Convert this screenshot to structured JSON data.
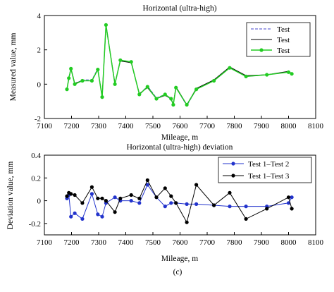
{
  "caption": "(c)",
  "chart_data": [
    {
      "type": "line",
      "title": "Horizontal (ultra-high)",
      "xlabel": "Mileage, m",
      "ylabel": "Measured value, mm",
      "xlim": [
        7100,
        8100
      ],
      "ylim": [
        -2,
        4
      ],
      "xticks": [
        7100,
        7200,
        7300,
        7400,
        7500,
        7600,
        7700,
        7800,
        7900,
        8000,
        8100
      ],
      "yticks": [
        -2,
        0,
        2,
        4
      ],
      "grid": false,
      "legend_position": "top-right",
      "x": [
        7183,
        7190,
        7198,
        7212,
        7240,
        7275,
        7297,
        7313,
        7327,
        7360,
        7380,
        7420,
        7450,
        7480,
        7513,
        7545,
        7567,
        7575,
        7585,
        7625,
        7660,
        7725,
        7783,
        7843,
        7920,
        8000,
        8012
      ],
      "series": [
        {
          "name": "Test",
          "color": "#4444cc",
          "style": "dashed",
          "marker": "none",
          "values": [
            -0.3,
            0.4,
            0.95,
            0.0,
            0.25,
            0.25,
            0.9,
            -0.7,
            3.5,
            0.0,
            1.4,
            1.3,
            -0.6,
            -0.1,
            -0.8,
            -0.6,
            -0.9,
            -1.2,
            -0.2,
            -1.25,
            -0.3,
            0.2,
            0.95,
            0.45,
            0.55,
            0.7,
            0.65
          ]
        },
        {
          "name": "Test",
          "color": "#000000",
          "style": "solid",
          "marker": "none",
          "values": [
            -0.3,
            0.3,
            0.9,
            0.05,
            0.2,
            0.2,
            0.85,
            -0.75,
            3.4,
            0.05,
            1.35,
            1.25,
            -0.55,
            -0.2,
            -0.85,
            -0.65,
            -0.85,
            -1.15,
            -0.15,
            -1.2,
            -0.25,
            0.25,
            1.0,
            0.5,
            0.55,
            0.75,
            0.6
          ]
        },
        {
          "name": "Test",
          "color": "#22cc22",
          "style": "solid",
          "marker": "circle",
          "values": [
            -0.3,
            0.35,
            0.9,
            0.0,
            0.2,
            0.2,
            0.85,
            -0.75,
            3.45,
            0.0,
            1.4,
            1.3,
            -0.6,
            -0.15,
            -0.85,
            -0.6,
            -0.85,
            -1.2,
            -0.2,
            -1.2,
            -0.3,
            0.2,
            0.95,
            0.45,
            0.55,
            0.7,
            0.6
          ]
        }
      ]
    },
    {
      "type": "line",
      "title": "Horizontal (ultra-high) deviation",
      "xlabel": "Mileage, m",
      "ylabel": "Deviation value, mm",
      "xlim": [
        7100,
        8100
      ],
      "ylim": [
        -0.3,
        0.4
      ],
      "xticks": [
        7100,
        7200,
        7300,
        7400,
        7500,
        7600,
        7700,
        7800,
        7900,
        8000,
        8100
      ],
      "yticks": [
        -0.2,
        0,
        0.2,
        0.4
      ],
      "grid": false,
      "legend_position": "top-right",
      "series": [
        {
          "name": "Test 1–Test 2",
          "color": "#2233cc",
          "marker": "circle",
          "x": [
            7183,
            7190,
            7198,
            7212,
            7240,
            7275,
            7297,
            7313,
            7327,
            7360,
            7380,
            7420,
            7450,
            7480,
            7513,
            7545,
            7567,
            7585,
            7625,
            7660,
            7725,
            7783,
            7843,
            7920,
            8000,
            8012
          ],
          "values": [
            0.02,
            0.05,
            -0.14,
            -0.11,
            -0.16,
            0.06,
            -0.12,
            -0.14,
            -0.02,
            0.03,
            0.0,
            0.0,
            -0.02,
            0.14,
            0.03,
            -0.05,
            -0.02,
            -0.02,
            -0.03,
            -0.03,
            -0.04,
            -0.05,
            -0.05,
            -0.05,
            -0.02,
            0.03
          ]
        },
        {
          "name": "Test 1–Test 3",
          "color": "#000000",
          "marker": "circle",
          "x": [
            7183,
            7190,
            7198,
            7212,
            7240,
            7275,
            7297,
            7313,
            7327,
            7360,
            7380,
            7420,
            7450,
            7480,
            7513,
            7545,
            7567,
            7585,
            7625,
            7660,
            7725,
            7783,
            7843,
            7920,
            8000,
            8012
          ],
          "values": [
            0.04,
            0.07,
            0.06,
            0.05,
            -0.02,
            0.12,
            0.02,
            0.02,
            0.0,
            -0.1,
            0.02,
            0.05,
            0.02,
            0.18,
            0.03,
            0.11,
            0.04,
            -0.02,
            -0.19,
            0.14,
            -0.04,
            0.07,
            -0.16,
            -0.07,
            0.03,
            -0.07
          ]
        }
      ]
    }
  ]
}
